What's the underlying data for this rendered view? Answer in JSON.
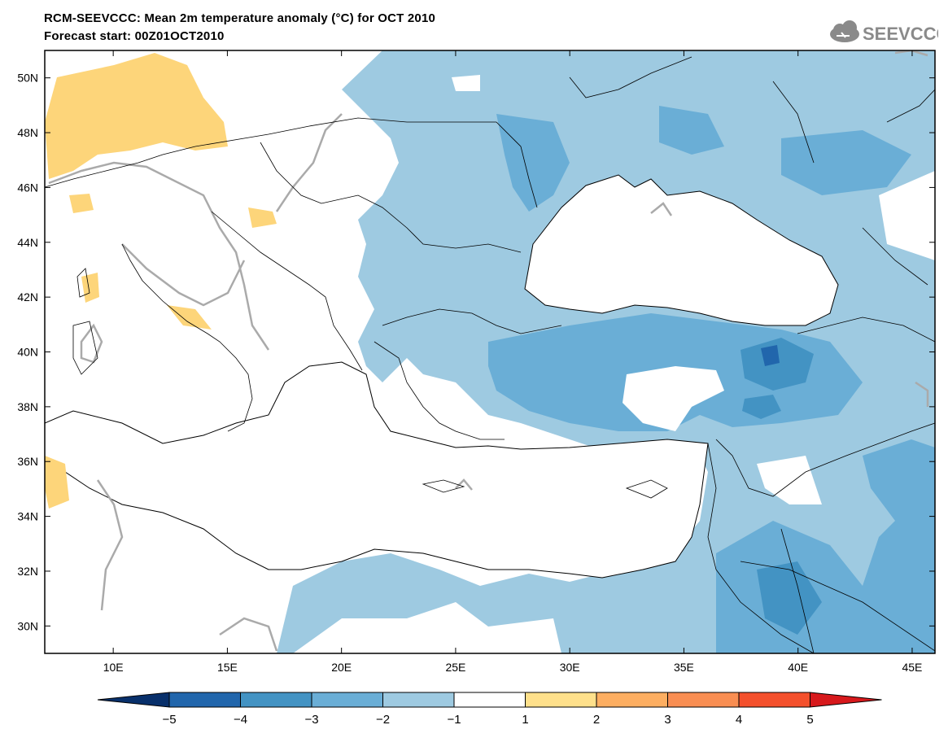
{
  "title": {
    "line1": "RCM-SEEVCCC: Mean 2m temperature anomaly (°C) for OCT 2010",
    "line2": "Forecast start: 00Z01OCT2010"
  },
  "logo": {
    "text": "SEEVCCC",
    "icon": "cloud-icon"
  },
  "map": {
    "lon_range": [
      7,
      46
    ],
    "lat_range": [
      29,
      51
    ],
    "lon_ticks": [
      {
        "value": 10,
        "label": "10E"
      },
      {
        "value": 15,
        "label": "15E"
      },
      {
        "value": 20,
        "label": "20E"
      },
      {
        "value": 25,
        "label": "25E"
      },
      {
        "value": 30,
        "label": "30E"
      },
      {
        "value": 35,
        "label": "35E"
      },
      {
        "value": 40,
        "label": "40E"
      },
      {
        "value": 45,
        "label": "45E"
      }
    ],
    "lat_ticks": [
      {
        "value": 30,
        "label": "30N"
      },
      {
        "value": 32,
        "label": "32N"
      },
      {
        "value": 34,
        "label": "34N"
      },
      {
        "value": 36,
        "label": "36N"
      },
      {
        "value": 38,
        "label": "38N"
      },
      {
        "value": 40,
        "label": "40N"
      },
      {
        "value": 42,
        "label": "42N"
      },
      {
        "value": 44,
        "label": "44N"
      },
      {
        "value": 46,
        "label": "46N"
      },
      {
        "value": 48,
        "label": "48N"
      },
      {
        "value": 50,
        "label": "50N"
      }
    ]
  },
  "colorbar": {
    "labels": [
      "−5",
      "−4",
      "−3",
      "−2",
      "−1",
      "1",
      "2",
      "3",
      "4",
      "5"
    ],
    "colors": [
      "#08306b",
      "#2166ac",
      "#4393c3",
      "#6aaed6",
      "#9ecae1",
      "#ffffff",
      "#fee08b",
      "#fdae61",
      "#f98e52",
      "#f4502c",
      "#d7191c"
    ]
  },
  "colors": {
    "light_blue": "#9ecae1",
    "mid_blue": "#6aaed6",
    "blue": "#4393c3",
    "dark_blue": "#2166ac",
    "yellow": "#fdd57a",
    "contour": "#aaaaaa"
  }
}
